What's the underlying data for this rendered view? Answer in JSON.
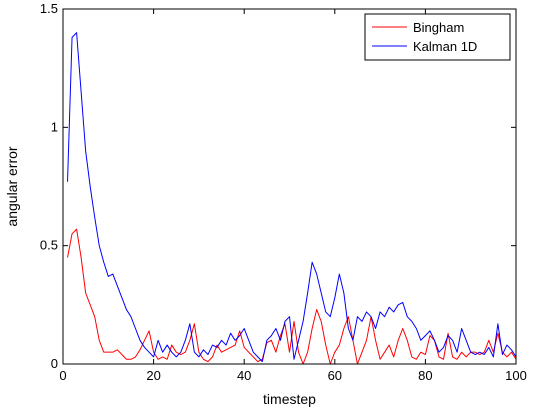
{
  "chart_data": {
    "type": "line",
    "title": "",
    "xlabel": "timestep",
    "ylabel": "angular error",
    "xlim": [
      0,
      100
    ],
    "ylim": [
      0,
      1.5
    ],
    "xticks": [
      0,
      20,
      40,
      60,
      80,
      100
    ],
    "yticks": [
      0,
      0.5,
      1,
      1.5
    ],
    "xtick_labels": [
      "0",
      "20",
      "40",
      "60",
      "80",
      "100"
    ],
    "ytick_labels": [
      "0",
      "0.5",
      "1",
      "1.5"
    ],
    "grid": false,
    "legend_position": "top-right",
    "colors": {
      "Bingham": "#ff0000",
      "Kalman 1D": "#0000ff"
    },
    "x": [
      1,
      2,
      3,
      4,
      5,
      6,
      7,
      8,
      9,
      10,
      11,
      12,
      13,
      14,
      15,
      16,
      17,
      18,
      19,
      20,
      21,
      22,
      23,
      24,
      25,
      26,
      27,
      28,
      29,
      30,
      31,
      32,
      33,
      34,
      35,
      36,
      37,
      38,
      39,
      40,
      41,
      42,
      43,
      44,
      45,
      46,
      47,
      48,
      49,
      50,
      51,
      52,
      53,
      54,
      55,
      56,
      57,
      58,
      59,
      60,
      61,
      62,
      63,
      64,
      65,
      66,
      67,
      68,
      69,
      70,
      71,
      72,
      73,
      74,
      75,
      76,
      77,
      78,
      79,
      80,
      81,
      82,
      83,
      84,
      85,
      86,
      87,
      88,
      89,
      90,
      91,
      92,
      93,
      94,
      95,
      96,
      97,
      98,
      99,
      100
    ],
    "series": [
      {
        "name": "Bingham",
        "values": [
          0.45,
          0.55,
          0.57,
          0.45,
          0.3,
          0.25,
          0.2,
          0.1,
          0.05,
          0.05,
          0.05,
          0.06,
          0.04,
          0.02,
          0.02,
          0.03,
          0.06,
          0.1,
          0.14,
          0.05,
          0.02,
          0.03,
          0.02,
          0.08,
          0.05,
          0.04,
          0.05,
          0.1,
          0.17,
          0.05,
          0.02,
          0.01,
          0.03,
          0.08,
          0.05,
          0.06,
          0.07,
          0.08,
          0.14,
          0.07,
          0.05,
          0.03,
          0.01,
          0.02,
          0.09,
          0.1,
          0.05,
          0.12,
          0.17,
          0.05,
          0.18,
          0.05,
          0.0,
          0.05,
          0.15,
          0.23,
          0.18,
          0.08,
          0.0,
          0.05,
          0.08,
          0.15,
          0.2,
          0.1,
          0.0,
          0.05,
          0.1,
          0.2,
          0.1,
          0.02,
          0.05,
          0.08,
          0.03,
          0.1,
          0.15,
          0.1,
          0.03,
          0.02,
          0.05,
          0.04,
          0.12,
          0.1,
          0.03,
          0.02,
          0.13,
          0.03,
          0.02,
          0.05,
          0.03,
          0.05,
          0.05,
          0.04,
          0.05,
          0.1,
          0.05,
          0.13,
          0.05,
          0.03,
          0.05,
          0.02
        ]
      },
      {
        "name": "Kalman 1D",
        "values": [
          0.77,
          1.38,
          1.4,
          1.15,
          0.9,
          0.75,
          0.62,
          0.5,
          0.43,
          0.37,
          0.38,
          0.33,
          0.28,
          0.23,
          0.2,
          0.15,
          0.1,
          0.07,
          0.05,
          0.03,
          0.1,
          0.05,
          0.08,
          0.05,
          0.03,
          0.05,
          0.1,
          0.17,
          0.05,
          0.03,
          0.06,
          0.04,
          0.08,
          0.07,
          0.1,
          0.08,
          0.13,
          0.1,
          0.12,
          0.15,
          0.1,
          0.05,
          0.03,
          0.01,
          0.1,
          0.12,
          0.15,
          0.1,
          0.18,
          0.2,
          0.02,
          0.1,
          0.18,
          0.3,
          0.43,
          0.38,
          0.3,
          0.22,
          0.2,
          0.28,
          0.38,
          0.3,
          0.15,
          0.1,
          0.2,
          0.18,
          0.22,
          0.2,
          0.15,
          0.22,
          0.2,
          0.24,
          0.22,
          0.25,
          0.26,
          0.2,
          0.18,
          0.15,
          0.1,
          0.12,
          0.14,
          0.1,
          0.05,
          0.07,
          0.12,
          0.1,
          0.05,
          0.15,
          0.1,
          0.05,
          0.04,
          0.05,
          0.04,
          0.07,
          0.03,
          0.17,
          0.04,
          0.08,
          0.06,
          0.03
        ]
      }
    ]
  }
}
